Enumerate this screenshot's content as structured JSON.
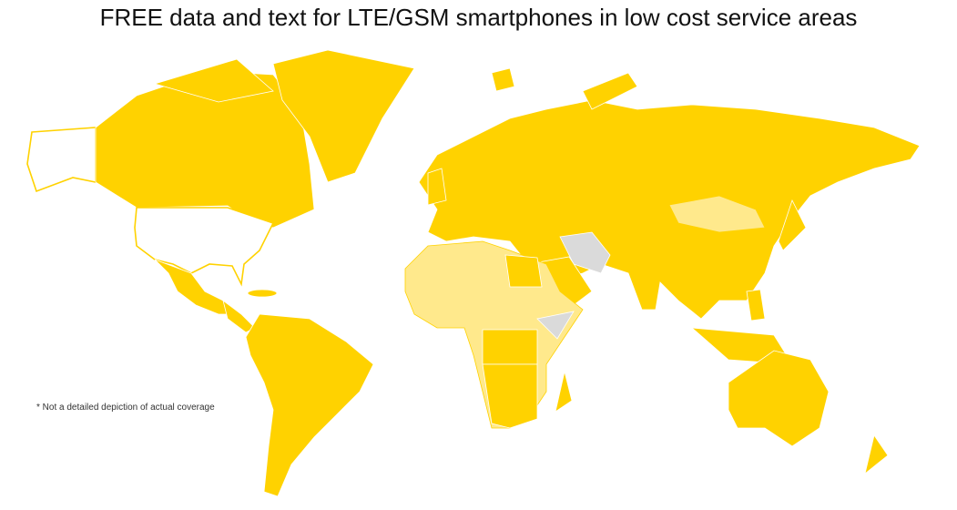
{
  "header": {
    "title": "FREE data and text for LTE/GSM smartphones in low cost service areas"
  },
  "footnote": "* Not a detailed depiction of actual coverage"
}
